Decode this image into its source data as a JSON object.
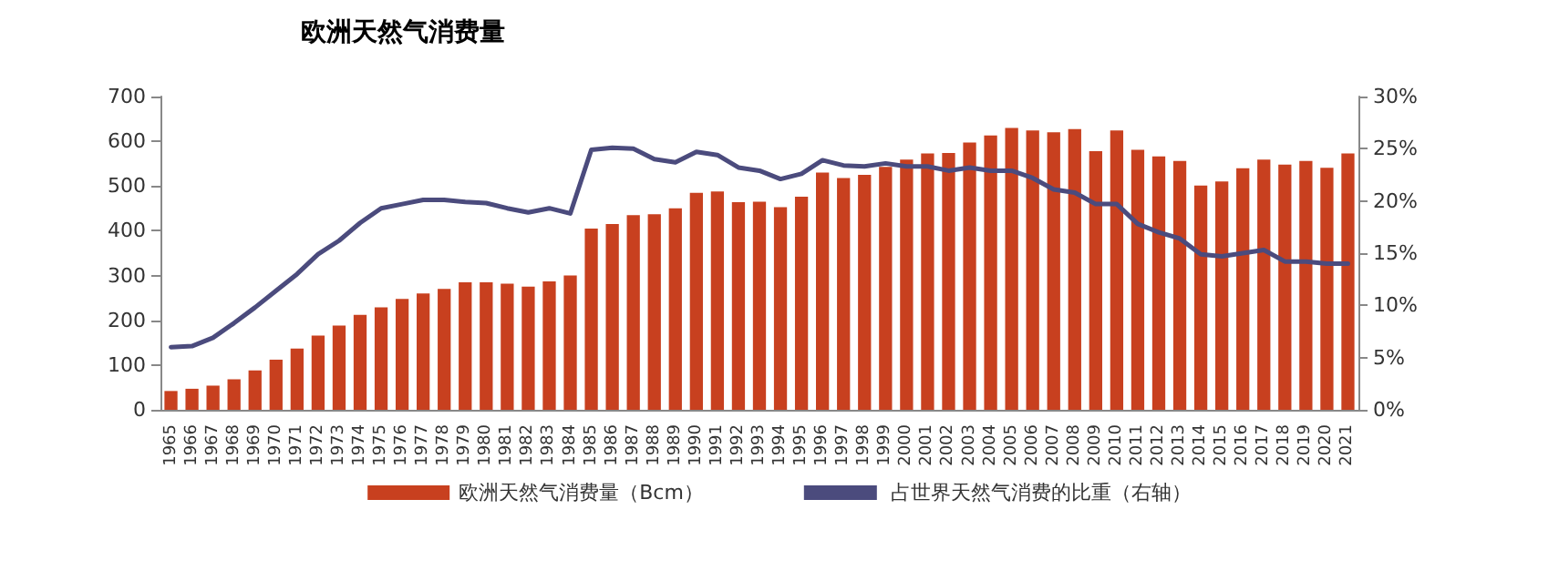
{
  "chart_data": {
    "type": "bar",
    "title": "欧洲天然气消费量",
    "categories": [
      "1965",
      "1966",
      "1967",
      "1968",
      "1969",
      "1970",
      "1971",
      "1972",
      "1973",
      "1974",
      "1975",
      "1976",
      "1977",
      "1978",
      "1979",
      "1980",
      "1981",
      "1982",
      "1983",
      "1984",
      "1985",
      "1986",
      "1987",
      "1988",
      "1989",
      "1990",
      "1991",
      "1992",
      "1993",
      "1994",
      "1995",
      "1996",
      "1997",
      "1998",
      "1999",
      "2000",
      "2001",
      "2002",
      "2003",
      "2004",
      "2005",
      "2006",
      "2007",
      "2008",
      "2009",
      "2010",
      "2011",
      "2012",
      "2013",
      "2014",
      "2015",
      "2016",
      "2017",
      "2018",
      "2019",
      "2020",
      "2021"
    ],
    "series": [
      {
        "name": "欧洲天然气消费量（Bcm）",
        "color": "#c8401f",
        "values": [
          42,
          47,
          54,
          68,
          88,
          112,
          137,
          166,
          188,
          212,
          229,
          248,
          260,
          270,
          285,
          285,
          282,
          275,
          287,
          300,
          405,
          415,
          435,
          437,
          450,
          485,
          488,
          464,
          465,
          453,
          476,
          530,
          518,
          525,
          543,
          559,
          573,
          574,
          597,
          613,
          630,
          624,
          620,
          627,
          578,
          624,
          581,
          566,
          556,
          501,
          510,
          540,
          559,
          548,
          556,
          541,
          573
        ]
      },
      {
        "name": "占世界天然气消费的比重（右轴）",
        "type": "line",
        "axis": "y2",
        "color": "#4b4b7d",
        "values": [
          6.0,
          6.1,
          6.9,
          8.3,
          9.8,
          11.4,
          13.0,
          14.9,
          16.2,
          17.9,
          19.3,
          19.7,
          20.1,
          20.1,
          19.9,
          19.8,
          19.3,
          18.9,
          19.3,
          18.8,
          24.9,
          25.1,
          25.0,
          24.0,
          23.7,
          24.7,
          24.4,
          23.2,
          22.9,
          22.1,
          22.6,
          23.9,
          23.4,
          23.3,
          23.6,
          23.3,
          23.3,
          22.9,
          23.2,
          22.9,
          22.9,
          22.2,
          21.1,
          20.8,
          19.7,
          19.7,
          17.8,
          17.0,
          16.4,
          14.9,
          14.7,
          15.0,
          15.3,
          14.2,
          14.2,
          14.0,
          14.0
        ]
      }
    ],
    "ylim": [
      0,
      700
    ],
    "yticks": [
      0,
      100,
      200,
      300,
      400,
      500,
      600,
      700
    ],
    "y2lim": [
      0,
      30
    ],
    "y2ticks": [
      {
        "value": 0,
        "label": "0%"
      },
      {
        "value": 5,
        "label": "5%"
      },
      {
        "value": 10,
        "label": "10%"
      },
      {
        "value": 15,
        "label": "15%"
      },
      {
        "value": 20,
        "label": "20%"
      },
      {
        "value": 25,
        "label": "25%"
      },
      {
        "value": 30,
        "label": "30%"
      }
    ],
    "grid": false,
    "legend": "bottom",
    "marker": "none",
    "line_style": "solid"
  }
}
